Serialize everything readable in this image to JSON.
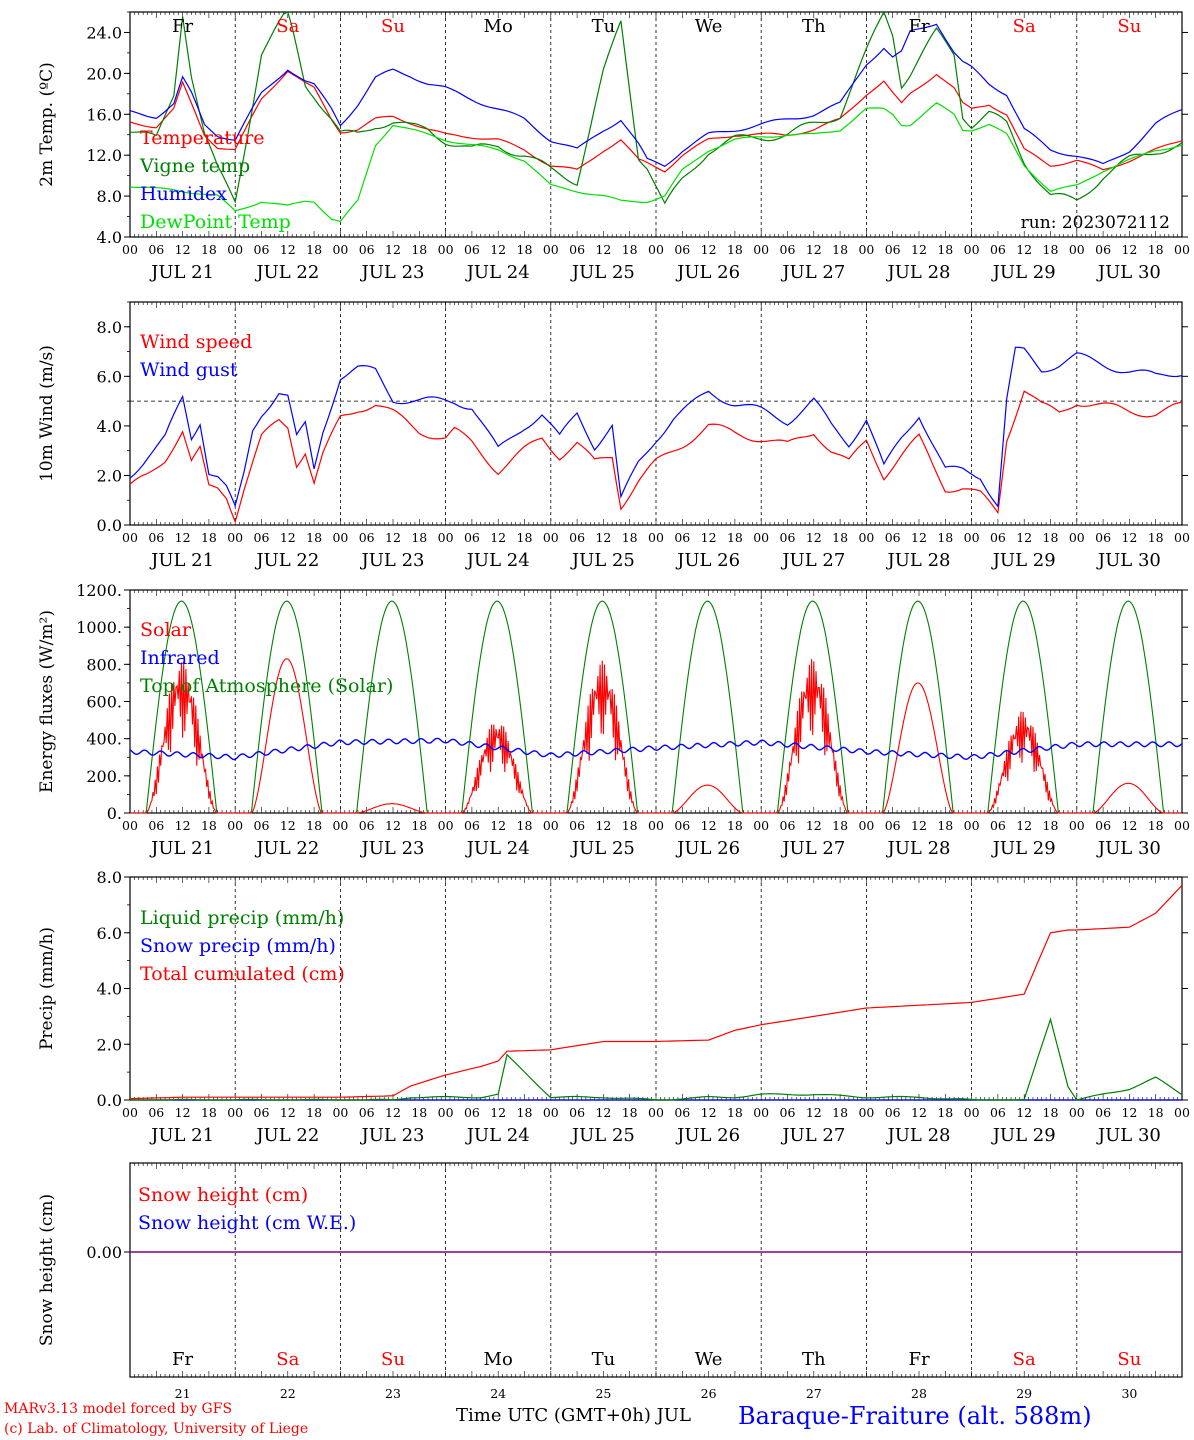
{
  "footer": {
    "model": "MARv3.13 model forced by GFS",
    "copyright": "(c) Lab. of Climatology, University of Liege",
    "xaxis_label": "Time UTC (GMT+0h) JUL",
    "station": "Baraque-Fraiture (alt. 588m)"
  },
  "colors": {
    "red": "#ff0000",
    "green": "#008000",
    "blue": "#0000ff",
    "lightgreen": "#00e000",
    "purple": "#800080"
  },
  "chart_data": [
    {
      "id": "temperature",
      "type": "line",
      "ylabel": "2m Temp. (ºC)",
      "ylim": [
        4,
        26
      ],
      "yticks": [
        4,
        8,
        12,
        16,
        20,
        24
      ],
      "ytick_labels": [
        "4.0",
        "8.0",
        "12.0",
        "16.0",
        "20.0",
        "24.0"
      ],
      "day_labels": [
        {
          "text": "Fr",
          "color": "#000000"
        },
        {
          "text": "Sa",
          "color": "#ff0000"
        },
        {
          "text": "Su",
          "color": "#ff0000"
        },
        {
          "text": "Mo",
          "color": "#000000"
        },
        {
          "text": "Tu",
          "color": "#000000"
        },
        {
          "text": "We",
          "color": "#000000"
        },
        {
          "text": "Th",
          "color": "#000000"
        },
        {
          "text": "Fr",
          "color": "#000000"
        },
        {
          "text": "Sa",
          "color": "#ff0000"
        },
        {
          "text": "Su",
          "color": "#ff0000"
        }
      ],
      "annotation": "run: 2023072112",
      "x_hours": [
        0,
        6,
        10,
        12,
        14,
        17,
        20,
        24,
        30,
        36,
        40,
        42,
        46,
        48,
        52,
        56,
        60,
        64,
        68,
        72,
        78,
        84,
        90,
        96,
        102,
        108,
        112,
        116,
        118,
        122,
        126,
        132,
        138,
        144,
        150,
        156,
        162,
        168,
        172,
        174,
        176,
        178,
        184,
        188,
        190,
        192,
        196,
        200,
        204,
        210,
        216,
        222,
        228,
        234,
        240
      ],
      "series": [
        {
          "name": "Temperature",
          "color": "#ff0000",
          "values": [
            15.2,
            14.8,
            16.5,
            19.0,
            17.0,
            14.0,
            12.8,
            12.5,
            17.5,
            20.3,
            19.0,
            18.5,
            15.5,
            14.3,
            14.5,
            15.5,
            15.8,
            15.2,
            14.5,
            14.0,
            13.8,
            13.5,
            12.5,
            11.0,
            10.5,
            12.5,
            13.5,
            11.5,
            11.2,
            10.5,
            12.0,
            13.5,
            14.0,
            14.0,
            14.0,
            14.5,
            15.5,
            18.0,
            19.2,
            18.0,
            17.0,
            18.0,
            20.0,
            18.5,
            17.0,
            16.5,
            17.0,
            16.0,
            12.5,
            11.0,
            11.5,
            10.5,
            11.5,
            12.5,
            13.5
          ]
        },
        {
          "name": "Vigne temp",
          "color": "#008000",
          "values": [
            14.5,
            13.5,
            18.0,
            26.0,
            20.0,
            14.0,
            10.5,
            7.5,
            22.0,
            26.0,
            19.0,
            18.0,
            15.5,
            14.0,
            14.0,
            15.0,
            15.3,
            14.7,
            14.5,
            13.5,
            12.5,
            13.0,
            12.0,
            10.5,
            9.5,
            20.0,
            25.0,
            12.0,
            11.0,
            7.0,
            9.5,
            12.5,
            13.5,
            13.8,
            14.0,
            15.0,
            16.0,
            22.0,
            26.0,
            24.0,
            19.0,
            20.0,
            24.0,
            22.0,
            16.0,
            15.0,
            16.0,
            15.0,
            11.5,
            8.0,
            7.5,
            10.0,
            11.5,
            12.5,
            13.0
          ]
        },
        {
          "name": "Humidex",
          "color": "#0000ff",
          "values": [
            16.2,
            15.8,
            17.0,
            19.5,
            18.0,
            15.0,
            14.0,
            13.5,
            18.0,
            20.5,
            19.2,
            18.8,
            16.5,
            15.0,
            17.0,
            19.5,
            20.3,
            19.8,
            19.0,
            18.5,
            17.5,
            16.5,
            15.5,
            13.5,
            12.5,
            14.5,
            15.5,
            13.0,
            11.5,
            11.0,
            12.5,
            14.0,
            14.5,
            15.0,
            15.5,
            16.0,
            17.0,
            21.0,
            22.5,
            21.5,
            22.0,
            24.0,
            25.0,
            22.0,
            21.0,
            20.5,
            19.0,
            18.0,
            14.5,
            12.5,
            12.0,
            11.0,
            12.5,
            15.0,
            16.5
          ]
        },
        {
          "name": "DewPoint Temp",
          "color": "#00e000",
          "values": [
            9.0,
            8.7,
            8.6,
            8.5,
            8.4,
            8.2,
            8.0,
            6.5,
            7.5,
            7.0,
            7.5,
            7.5,
            5.8,
            5.5,
            7.5,
            13.0,
            15.0,
            14.5,
            14.0,
            13.5,
            13.0,
            12.5,
            11.5,
            9.0,
            8.5,
            8.0,
            7.5,
            7.5,
            7.5,
            8.0,
            10.5,
            12.5,
            13.5,
            13.8,
            14.0,
            14.0,
            14.5,
            16.5,
            16.5,
            16.0,
            15.0,
            15.0,
            17.0,
            16.0,
            14.5,
            14.5,
            15.0,
            14.0,
            11.0,
            8.5,
            9.0,
            10.5,
            11.5,
            12.5,
            13.0
          ]
        }
      ]
    },
    {
      "id": "wind",
      "type": "line",
      "ylabel": "10m Wind (m/s)",
      "ylim": [
        0,
        9
      ],
      "yticks": [
        0,
        2,
        4,
        6,
        8
      ],
      "ytick_labels": [
        "0.0",
        "2.0",
        "4.0",
        "6.0",
        "8.0"
      ],
      "reference_line": 5,
      "x_hours": [
        0,
        4,
        8,
        12,
        14,
        16,
        18,
        20,
        22,
        24,
        26,
        28,
        30,
        34,
        36,
        38,
        40,
        42,
        44,
        48,
        52,
        56,
        60,
        66,
        72,
        74,
        78,
        84,
        90,
        94,
        98,
        102,
        106,
        110,
        112,
        116,
        120,
        124,
        128,
        132,
        138,
        144,
        150,
        156,
        160,
        164,
        168,
        172,
        176,
        180,
        186,
        190,
        194,
        198,
        200,
        202,
        204,
        208,
        212,
        216,
        222,
        228,
        234,
        240
      ],
      "series": [
        {
          "name": "Wind speed",
          "color": "#ff0000",
          "values": [
            1.5,
            2.0,
            2.7,
            3.8,
            2.5,
            3.0,
            1.5,
            1.5,
            1.2,
            0.3,
            1.5,
            2.5,
            3.5,
            4.2,
            4.0,
            2.5,
            3.0,
            1.7,
            2.8,
            4.3,
            4.7,
            4.9,
            4.5,
            3.8,
            3.5,
            3.8,
            3.3,
            2.2,
            3.0,
            3.5,
            2.8,
            3.3,
            2.5,
            2.8,
            0.8,
            1.8,
            2.5,
            3.0,
            3.5,
            4.0,
            3.7,
            3.5,
            3.2,
            3.8,
            3.0,
            2.5,
            3.4,
            2.0,
            2.8,
            3.5,
            1.5,
            1.5,
            1.2,
            0.5,
            3.5,
            4.5,
            5.5,
            4.8,
            4.5,
            5.0,
            4.8,
            4.6,
            4.5,
            4.8
          ]
        },
        {
          "name": "Wind gust",
          "color": "#0000ff",
          "values": [
            2.0,
            2.8,
            3.5,
            5.1,
            3.5,
            4.2,
            2.2,
            2.0,
            1.5,
            0.6,
            2.0,
            3.8,
            4.5,
            5.4,
            5.2,
            3.5,
            4.0,
            2.2,
            3.8,
            6.0,
            6.3,
            6.2,
            5.1,
            5.0,
            5.0,
            5.0,
            4.8,
            3.0,
            4.0,
            4.5,
            3.5,
            4.5,
            3.2,
            4.0,
            1.0,
            2.5,
            3.5,
            4.3,
            4.8,
            5.4,
            4.9,
            4.6,
            4.2,
            5.0,
            4.0,
            3.3,
            4.3,
            2.3,
            3.5,
            4.5,
            2.2,
            2.2,
            2.0,
            0.8,
            5.0,
            7.0,
            7.0,
            6.3,
            6.5,
            6.8,
            6.5,
            6.2,
            6.0,
            6.2
          ]
        }
      ]
    },
    {
      "id": "energy",
      "type": "line",
      "ylabel": "Energy fluxes (W/m²)",
      "ylim": [
        0,
        1200
      ],
      "yticks": [
        0,
        200,
        400,
        600,
        800,
        1000,
        1200
      ],
      "ytick_labels": [
        "0.",
        "200.",
        "400.",
        "600.",
        "800.",
        "1000.",
        "1200."
      ],
      "sunrise_hour": 3.7,
      "sunset_hour": 19.8,
      "toa_peak": 1140,
      "solar_peaks": [
        820,
        830,
        50,
        500,
        820,
        150,
        830,
        700,
        550,
        160
      ],
      "infrared_daily": [
        330,
        300,
        380,
        390,
        310,
        350,
        380,
        330,
        300,
        370,
        370
      ],
      "series": [
        {
          "name": "Solar",
          "color": "#ff0000"
        },
        {
          "name": "Infrared",
          "color": "#0000ff"
        },
        {
          "name": "Top of Atmosphere (Solar)",
          "color": "#008000"
        }
      ]
    },
    {
      "id": "precip",
      "type": "line",
      "ylabel": "Precip (mm/h)",
      "ylim": [
        0,
        8
      ],
      "yticks": [
        0,
        2,
        4,
        6,
        8
      ],
      "ytick_labels": [
        "0.0",
        "2.0",
        "4.0",
        "6.0",
        "8.0"
      ],
      "x_hours": [
        0,
        12,
        24,
        48,
        60,
        64,
        72,
        80,
        84,
        86,
        96,
        108,
        120,
        132,
        138,
        144,
        156,
        168,
        180,
        192,
        204,
        210,
        214,
        216,
        228,
        234,
        240
      ],
      "series": [
        {
          "name": "Liquid precip (mm/h)",
          "color": "#008000",
          "values": [
            0,
            0,
            0,
            0,
            0,
            0.1,
            0.1,
            0.1,
            0.2,
            1.6,
            0.1,
            0.1,
            0,
            0.1,
            0.1,
            0.2,
            0.2,
            0.1,
            0.1,
            0,
            0,
            2.9,
            0.5,
            0,
            0.4,
            0.8,
            0.2
          ]
        },
        {
          "name": "Snow precip (mm/h)",
          "color": "#0000ff",
          "values": [
            0,
            0,
            0,
            0,
            0,
            0,
            0,
            0,
            0,
            0,
            0,
            0,
            0,
            0,
            0,
            0,
            0,
            0,
            0,
            0,
            0,
            0,
            0,
            0,
            0,
            0,
            0
          ]
        },
        {
          "name": "Total cumulated (cm)",
          "color": "#ff0000",
          "values": [
            0.05,
            0.1,
            0.1,
            0.1,
            0.15,
            0.5,
            0.9,
            1.2,
            1.4,
            1.75,
            1.8,
            2.1,
            2.1,
            2.15,
            2.5,
            2.7,
            3.0,
            3.3,
            3.4,
            3.5,
            3.8,
            6.0,
            6.1,
            6.1,
            6.2,
            6.7,
            7.7
          ]
        }
      ]
    },
    {
      "id": "snow",
      "type": "line",
      "ylabel": "Snow height (cm)",
      "ytick_labels": [
        "0.00"
      ],
      "day_labels": [
        {
          "text": "Fr",
          "color": "#000000"
        },
        {
          "text": "Sa",
          "color": "#ff0000"
        },
        {
          "text": "Su",
          "color": "#ff0000"
        },
        {
          "text": "Mo",
          "color": "#000000"
        },
        {
          "text": "Tu",
          "color": "#000000"
        },
        {
          "text": "We",
          "color": "#000000"
        },
        {
          "text": "Th",
          "color": "#000000"
        },
        {
          "text": "Fr",
          "color": "#000000"
        },
        {
          "text": "Sa",
          "color": "#ff0000"
        },
        {
          "text": "Su",
          "color": "#ff0000"
        }
      ],
      "day_numbers": [
        "21",
        "22",
        "23",
        "24",
        "25",
        "26",
        "27",
        "28",
        "29",
        "30"
      ],
      "series": [
        {
          "name": "Snow height (cm)",
          "color": "#ff0000",
          "values": [
            0,
            0
          ]
        },
        {
          "name": "Snow height (cm W.E.)",
          "color": "#0000ff",
          "values": [
            0,
            0
          ]
        }
      ]
    }
  ],
  "x_axis": {
    "hour_ticks": [
      "00",
      "06",
      "12",
      "18"
    ],
    "final_tick": "00",
    "date_labels": [
      "JUL 21",
      "JUL 22",
      "JUL 23",
      "JUL 24",
      "JUL 25",
      "JUL 26",
      "JUL 27",
      "JUL 28",
      "JUL 29",
      "JUL 30"
    ]
  }
}
